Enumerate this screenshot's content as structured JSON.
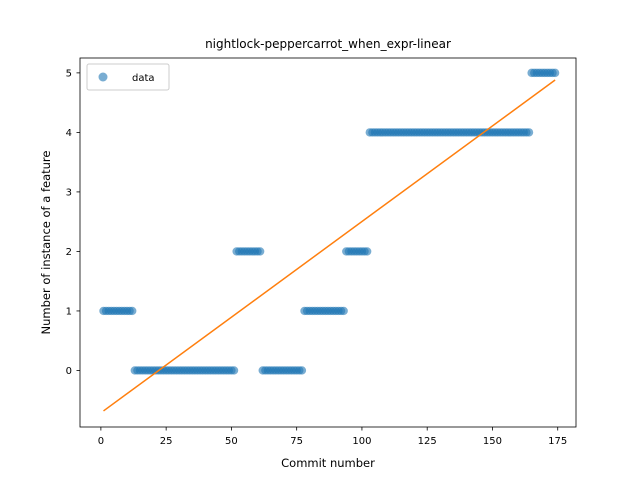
{
  "chart_data": {
    "type": "scatter",
    "title": "nightlock-peppercarrot_when_expr-linear",
    "xlabel": "Commit number",
    "ylabel": "Number of instance of a feature",
    "xlim": [
      -8,
      182
    ],
    "ylim": [
      -0.95,
      5.25
    ],
    "x_ticks": [
      0,
      25,
      50,
      75,
      100,
      125,
      150,
      175
    ],
    "y_ticks": [
      0,
      1,
      2,
      3,
      4,
      5
    ],
    "grid": false,
    "legend": {
      "position": "top-left",
      "entries": [
        "data"
      ]
    },
    "colors": {
      "data": "#1f77b4",
      "fit": "#ff7f0e"
    },
    "series": [
      {
        "name": "data",
        "kind": "scatter",
        "segments": [
          {
            "x_start": 1,
            "x_end": 12,
            "y": 1
          },
          {
            "x_start": 13,
            "x_end": 51,
            "y": 0
          },
          {
            "x_start": 52,
            "x_end": 61,
            "y": 2
          },
          {
            "x_start": 62,
            "x_end": 77,
            "y": 0
          },
          {
            "x_start": 78,
            "x_end": 93,
            "y": 1
          },
          {
            "x_start": 94,
            "x_end": 102,
            "y": 2
          },
          {
            "x_start": 103,
            "x_end": 164,
            "y": 4
          },
          {
            "x_start": 165,
            "x_end": 174,
            "y": 5
          }
        ]
      },
      {
        "name": "",
        "kind": "line",
        "x": [
          1,
          174
        ],
        "y": [
          -0.68,
          4.88
        ]
      }
    ]
  }
}
